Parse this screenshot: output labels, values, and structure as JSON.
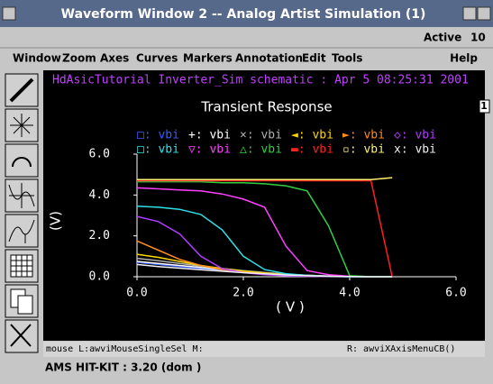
{
  "window": {
    "title": "Waveform Window 2 -- Analog Artist Simulation (1)",
    "active_label": "Active",
    "active_count": 10,
    "menu": [
      "Window",
      "Zoom",
      "Axes",
      "Curves",
      "Markers",
      "Annotation",
      "Edit",
      "Tools"
    ],
    "help": "Help",
    "subwindow": "1",
    "status_left": "mouse L:awviMouseSingleSel M:",
    "status_right": "R: awviXAxisMenuCB()",
    "footer": "AMS HIT-KIT : 3.20  (dom )"
  },
  "chart_data": {
    "type": "line",
    "header": "HdAsicTutorial Inverter_Sim schematic : Apr  5 08:25:31 2001",
    "title": "Transient Response",
    "x_label": "( V )",
    "y_label": "(V)",
    "x": [
      0,
      0.4,
      0.8,
      1.2,
      1.6,
      2.0,
      2.4,
      2.8,
      3.2,
      3.6,
      4.0,
      4.4,
      4.8
    ],
    "xlim": [
      0,
      6
    ],
    "ylim": [
      0,
      6
    ],
    "xticks": [
      {
        "value": 0,
        "label": "0.0"
      },
      {
        "value": 2,
        "label": "2.0"
      },
      {
        "value": 4,
        "label": "4.0"
      },
      {
        "value": 6,
        "label": "6.0"
      }
    ],
    "yticks": [
      {
        "value": 0,
        "label": "0.0"
      },
      {
        "value": 2,
        "label": "2.0"
      },
      {
        "value": 4,
        "label": "4.0"
      },
      {
        "value": 6,
        "label": "6.0"
      }
    ],
    "series": [
      {
        "name": "□: vbi",
        "color": "#3a5cff",
        "values": [
          0.7,
          0.6,
          0.5,
          0.4,
          0.32,
          0.24,
          0.17,
          0.11,
          0.06,
          0.03,
          0.01,
          0,
          0
        ]
      },
      {
        "name": "+: vbi",
        "color": "#ffffff",
        "values": [
          0.75,
          0.65,
          0.55,
          0.45,
          0.35,
          0.26,
          0.18,
          0.12,
          0.07,
          0.03,
          0.01,
          0,
          0
        ]
      },
      {
        "name": "×: vbi",
        "color": "#b0b0b0",
        "values": [
          0.9,
          0.78,
          0.65,
          0.52,
          0.4,
          0.3,
          0.21,
          0.13,
          0.07,
          0.03,
          0.01,
          0,
          0
        ]
      },
      {
        "name": "◄: vbi",
        "color": "#ffd800",
        "values": [
          1.1,
          0.95,
          0.75,
          0.55,
          0.4,
          0.28,
          0.18,
          0.1,
          0.05,
          0.02,
          0.01,
          0,
          0
        ]
      },
      {
        "name": "►: vbi",
        "color": "#ff8c1a",
        "values": [
          1.75,
          1.3,
          0.85,
          0.55,
          0.35,
          0.22,
          0.14,
          0.08,
          0.04,
          0.02,
          0.01,
          0,
          0
        ]
      },
      {
        "name": "◇: vbi",
        "color": "#b03cff",
        "values": [
          2.95,
          2.7,
          2.1,
          1.0,
          0.4,
          0.2,
          0.1,
          0.05,
          0.02,
          0.01,
          0,
          0,
          0
        ]
      },
      {
        "name": "□: vbi",
        "color": "#30e0e8",
        "values": [
          3.45,
          3.4,
          3.3,
          3.05,
          2.3,
          1.0,
          0.35,
          0.15,
          0.06,
          0.02,
          0,
          0,
          0
        ]
      },
      {
        "name": "▽: vbi",
        "color": "#ff40ff",
        "values": [
          4.35,
          4.3,
          4.25,
          4.2,
          4.05,
          3.8,
          3.4,
          1.5,
          0.3,
          0.1,
          0.02,
          0,
          0
        ]
      },
      {
        "name": "△: vbi",
        "color": "#30d040",
        "values": [
          4.65,
          4.65,
          4.65,
          4.65,
          4.6,
          4.6,
          4.55,
          4.45,
          4.2,
          2.5,
          0.05,
          0,
          0
        ]
      },
      {
        "name": "▬: vbi",
        "color": "#ff2020",
        "values": [
          4.7,
          4.7,
          4.7,
          4.7,
          4.7,
          4.7,
          4.7,
          4.7,
          4.7,
          4.7,
          4.7,
          4.7,
          0
        ]
      },
      {
        "name": "▫: vbi",
        "color": "#fff070",
        "values": [
          4.75,
          4.75,
          4.75,
          4.75,
          4.75,
          4.75,
          4.75,
          4.75,
          4.75,
          4.75,
          4.75,
          4.75,
          4.85
        ]
      },
      {
        "name": "x: vbi",
        "color": "#f0f0f0",
        "values": [
          0.6,
          0.5,
          0.42,
          0.34,
          0.27,
          0.2,
          0.14,
          0.09,
          0.05,
          0.02,
          0.01,
          0,
          0
        ]
      }
    ]
  }
}
